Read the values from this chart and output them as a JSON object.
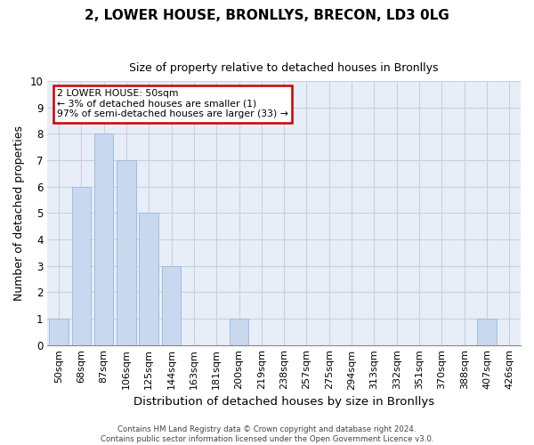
{
  "title": "2, LOWER HOUSE, BRONLLYS, BRECON, LD3 0LG",
  "subtitle": "Size of property relative to detached houses in Bronllys",
  "xlabel": "Distribution of detached houses by size in Bronllys",
  "ylabel": "Number of detached properties",
  "bar_labels": [
    "50sqm",
    "68sqm",
    "87sqm",
    "106sqm",
    "125sqm",
    "144sqm",
    "163sqm",
    "181sqm",
    "200sqm",
    "219sqm",
    "238sqm",
    "257sqm",
    "275sqm",
    "294sqm",
    "313sqm",
    "332sqm",
    "351sqm",
    "370sqm",
    "388sqm",
    "407sqm",
    "426sqm"
  ],
  "bar_values": [
    1,
    6,
    8,
    7,
    5,
    3,
    0,
    0,
    1,
    0,
    0,
    0,
    0,
    0,
    0,
    0,
    0,
    0,
    0,
    1,
    0
  ],
  "bar_color": "#c8d8ee",
  "bar_edge_color": "#a0bcdc",
  "ylim": [
    0,
    10
  ],
  "yticks": [
    0,
    1,
    2,
    3,
    4,
    5,
    6,
    7,
    8,
    9,
    10
  ],
  "annotation_text": "2 LOWER HOUSE: 50sqm\n← 3% of detached houses are smaller (1)\n97% of semi-detached houses are larger (33) →",
  "annotation_box_color": "#ffffff",
  "annotation_box_edge_color": "#cc0000",
  "footer_line1": "Contains HM Land Registry data © Crown copyright and database right 2024.",
  "footer_line2": "Contains public sector information licensed under the Open Government Licence v3.0.",
  "background_color": "#ffffff",
  "plot_bg_color": "#e8eef8",
  "grid_color": "#c8d0e0"
}
